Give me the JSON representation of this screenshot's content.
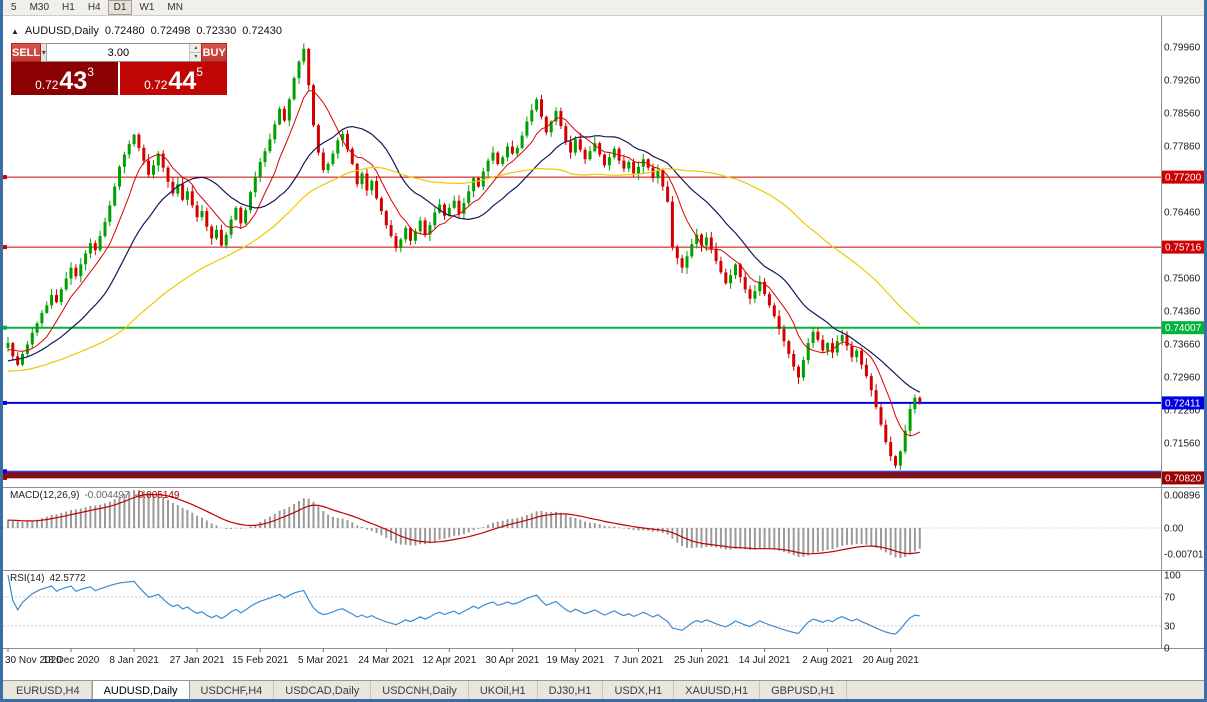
{
  "window": {
    "toolbar": {
      "timeframes": [
        "5",
        "M30",
        "H1",
        "H4",
        "D1",
        "W1",
        "MN"
      ],
      "active": "D1"
    },
    "tabs": [
      {
        "label": "EURUSD,H4",
        "active": false
      },
      {
        "label": "AUDUSD,Daily",
        "active": true
      },
      {
        "label": "USDCHF,H4",
        "active": false
      },
      {
        "label": "USDCAD,Daily",
        "active": false
      },
      {
        "label": "USDCNH,Daily",
        "active": false
      },
      {
        "label": "UKOil,H1",
        "active": false
      },
      {
        "label": "DJ30,H1",
        "active": false
      },
      {
        "label": "USDX,H1",
        "active": false
      },
      {
        "label": "XAUUSD,H1",
        "active": false
      },
      {
        "label": "GBPUSD,H1",
        "active": false
      }
    ]
  },
  "chart": {
    "symbol": "AUDUSD,Daily",
    "open": "0.72480",
    "high": "0.72498",
    "low": "0.72330",
    "close": "0.72430"
  },
  "trade_panel": {
    "sell_label": "SELL",
    "buy_label": "BUY",
    "volume": "3.00",
    "sell_price_base": "0.72",
    "sell_price_big": "43",
    "sell_price_sup": "3",
    "buy_price_base": "0.72",
    "buy_price_big": "44",
    "buy_price_sup": "5"
  },
  "chart_data": {
    "type": "candlestick",
    "symbol": "AUDUSD",
    "timeframe": "Daily",
    "title": "AUDUSD,Daily 0.72480 0.72498 0.72330 0.72430",
    "pip_factor": 0.0001,
    "closes_pips": [
      7368,
      7340,
      7322,
      7345,
      7365,
      7390,
      7410,
      7432,
      7448,
      7470,
      7455,
      7482,
      7505,
      7528,
      7510,
      7535,
      7558,
      7580,
      7565,
      7595,
      7625,
      7660,
      7700,
      7742,
      7768,
      7790,
      7810,
      7782,
      7755,
      7725,
      7745,
      7770,
      7740,
      7710,
      7685,
      7705,
      7672,
      7690,
      7660,
      7635,
      7648,
      7615,
      7590,
      7608,
      7575,
      7598,
      7630,
      7655,
      7622,
      7650,
      7688,
      7720,
      7752,
      7775,
      7800,
      7832,
      7865,
      7840,
      7885,
      7930,
      7965,
      7992,
      7915,
      7830,
      7772,
      7735,
      7748,
      7770,
      7798,
      7812,
      7780,
      7748,
      7705,
      7728,
      7692,
      7712,
      7675,
      7648,
      7618,
      7595,
      7570,
      7588,
      7612,
      7585,
      7605,
      7628,
      7598,
      7618,
      7645,
      7662,
      7638,
      7655,
      7670,
      7642,
      7665,
      7690,
      7718,
      7700,
      7732,
      7755,
      7772,
      7748,
      7762,
      7785,
      7770,
      7782,
      7808,
      7838,
      7862,
      7885,
      7848,
      7815,
      7838,
      7860,
      7828,
      7795,
      7772,
      7800,
      7778,
      7758,
      7775,
      7792,
      7768,
      7745,
      7762,
      7780,
      7755,
      7738,
      7752,
      7728,
      7742,
      7758,
      7740,
      7718,
      7735,
      7700,
      7668,
      7572,
      7548,
      7528,
      7552,
      7578,
      7598,
      7575,
      7592,
      7568,
      7542,
      7518,
      7495,
      7512,
      7535,
      7508,
      7482,
      7462,
      7478,
      7498,
      7472,
      7448,
      7425,
      7398,
      7372,
      7345,
      7318,
      7295,
      7332,
      7368,
      7392,
      7375,
      7352,
      7368,
      7348,
      7372,
      7385,
      7362,
      7338,
      7352,
      7322,
      7298,
      7268,
      7232,
      7195,
      7158,
      7128,
      7108,
      7138,
      7182,
      7228,
      7252,
      7243
    ],
    "x_labels": [
      "30 Nov 2020",
      "18 Dec 2020",
      "8 Jan 2021",
      "27 Jan 2021",
      "15 Feb 2021",
      "5 Mar 2021",
      "24 Mar 2021",
      "12 Apr 2021",
      "30 Apr 2021",
      "19 May 2021",
      "7 Jun 2021",
      "25 Jun 2021",
      "14 Jul 2021",
      "2 Aug 2021",
      "20 Aug 2021"
    ],
    "price_axis_labels": [
      "0.79960",
      "0.79260",
      "0.78560",
      "0.77860",
      "0.76460",
      "0.75060",
      "0.74360",
      "0.73660",
      "0.72960",
      "0.72260",
      "0.71560"
    ],
    "hlines": [
      {
        "price": 0.772,
        "color": "#CC0000",
        "tag": "0.77200",
        "width": 1
      },
      {
        "price": 0.75716,
        "color": "#CC0000",
        "tag": "0.75716",
        "width": 1
      },
      {
        "price": 0.74007,
        "color": "#00B43C",
        "tag": "0.74007",
        "width": 2
      },
      {
        "price": 0.72411,
        "color": "#0000E0",
        "tag": "0.72411",
        "width": 2
      },
      {
        "price": 0.7096,
        "color": "#0000CC",
        "tag": "",
        "width": 1
      },
      {
        "price": 0.7082,
        "color": "#990000",
        "tag": "0.70820",
        "width": 1
      }
    ],
    "support_band": {
      "top": 0.70945,
      "bottom": 0.70825,
      "color": "#7A1222"
    },
    "moving_averages": [
      {
        "period": 8,
        "color": "#DD0000",
        "width": 1
      },
      {
        "period": 20,
        "color": "#17175A",
        "width": 1.2
      },
      {
        "period": 55,
        "color": "#EEC900",
        "width": 1.2
      }
    ],
    "colors": {
      "up": "#00A000",
      "down": "#D40000",
      "macd_hist": "#9A9A9A",
      "macd_signal": "#C00000",
      "rsi": "#3C8CD0"
    },
    "indicators": {
      "macd": {
        "label": "MACD(12,26,9)",
        "value": "-0.004497",
        "signal": "-0.005149",
        "axis": [
          "0.00896",
          "0.00",
          "-0.00701"
        ]
      },
      "rsi": {
        "label": "RSI(14)",
        "value": "42.5772",
        "axis": [
          "100",
          "70",
          "30",
          "0"
        ],
        "levels": [
          70,
          30
        ]
      }
    },
    "price_range": {
      "top": 0.8055,
      "bottom": 0.7065
    },
    "legend_position": "none",
    "grid": false
  }
}
